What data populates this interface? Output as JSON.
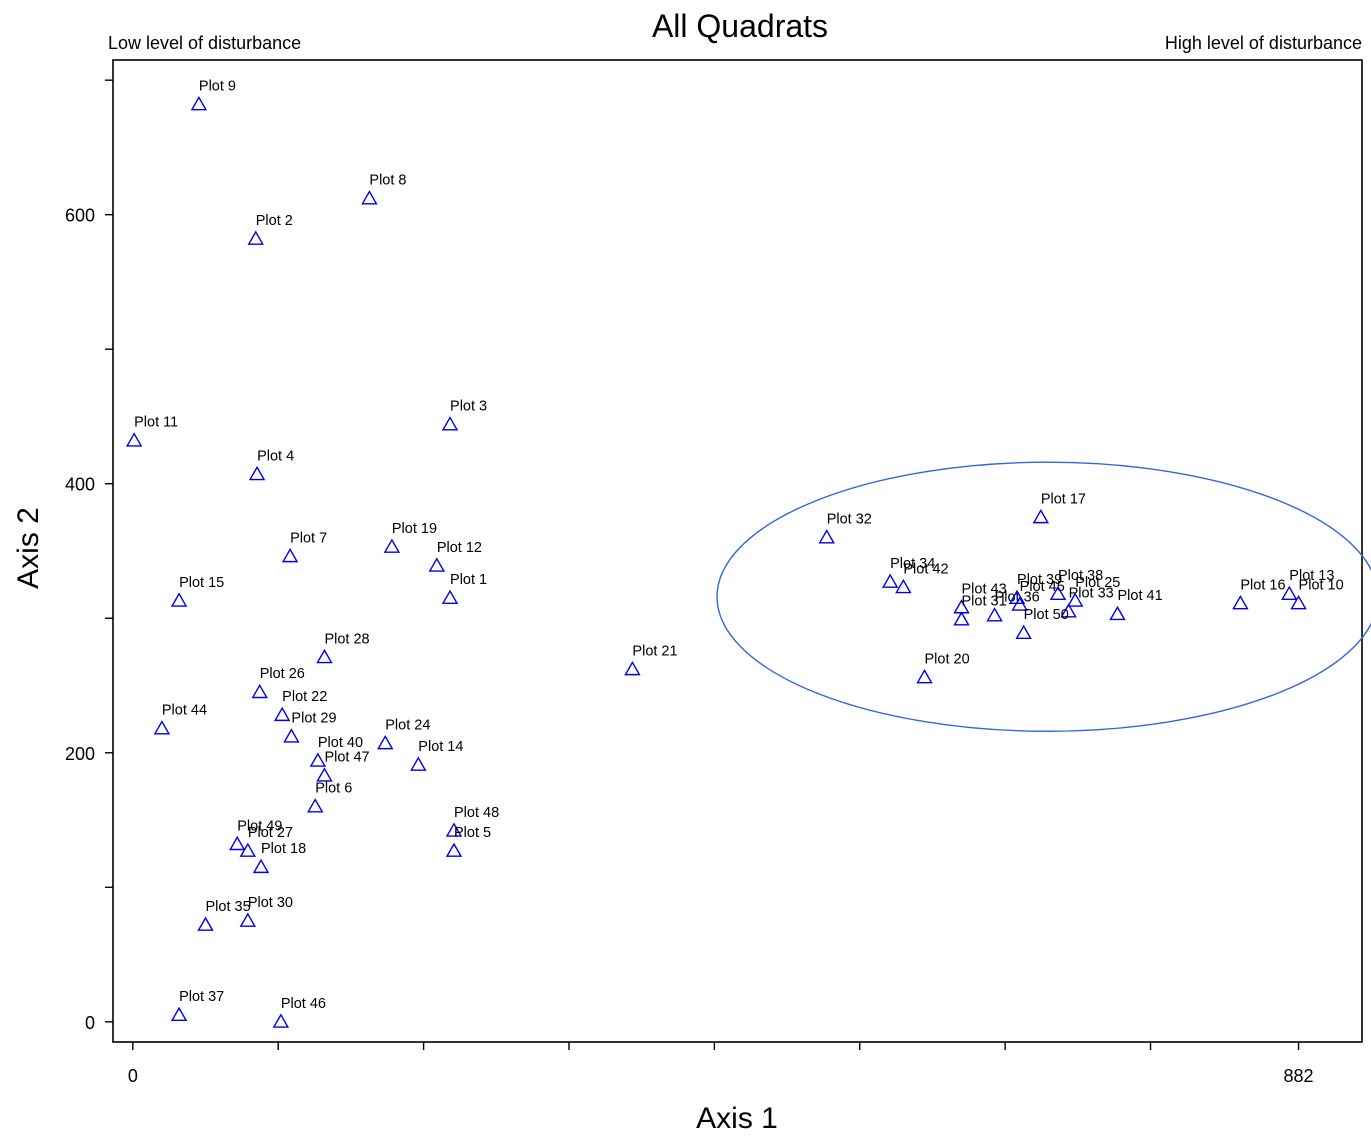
{
  "chart_data": {
    "type": "scatter",
    "title": "All Quadrats",
    "corner_labels": {
      "left": "Low level of disturbance",
      "right": "High level of disturbance"
    },
    "xlabel": "Axis 1",
    "ylabel": "Axis 2",
    "xlim": [
      -15,
      930
    ],
    "ylim": [
      -15,
      715
    ],
    "x_ticks": [
      0,
      110,
      220,
      330,
      440,
      550,
      660,
      770,
      882
    ],
    "x_tick_labels": [
      "0",
      "",
      "",
      "",
      "",
      "",
      "",
      "",
      "882"
    ],
    "y_ticks": [
      0,
      100,
      200,
      300,
      400,
      500,
      600,
      700
    ],
    "y_tick_labels": [
      "0",
      "",
      "200",
      "",
      "400",
      "",
      "600",
      ""
    ],
    "marker": "triangle",
    "marker_color": "#0000ee",
    "highlight": {
      "shape": "ellipse",
      "color": "#3366dd",
      "center": [
        692,
        316
      ],
      "radii": [
        250,
        100
      ]
    },
    "points": [
      {
        "label": "Plot 9",
        "x": 50,
        "y": 682
      },
      {
        "label": "Plot 8",
        "x": 179,
        "y": 612
      },
      {
        "label": "Plot 2",
        "x": 93,
        "y": 582
      },
      {
        "label": "Plot 3",
        "x": 240,
        "y": 444
      },
      {
        "label": "Plot 11",
        "x": 1,
        "y": 432
      },
      {
        "label": "Plot 4",
        "x": 94,
        "y": 407
      },
      {
        "label": "Plot 7",
        "x": 119,
        "y": 346
      },
      {
        "label": "Plot 19",
        "x": 196,
        "y": 353
      },
      {
        "label": "Plot 12",
        "x": 230,
        "y": 339
      },
      {
        "label": "Plot 1",
        "x": 240,
        "y": 315
      },
      {
        "label": "Plot 15",
        "x": 35,
        "y": 313
      },
      {
        "label": "Plot 28",
        "x": 145,
        "y": 271
      },
      {
        "label": "Plot 26",
        "x": 96,
        "y": 245
      },
      {
        "label": "Plot 22",
        "x": 113,
        "y": 228
      },
      {
        "label": "Plot 29",
        "x": 120,
        "y": 212
      },
      {
        "label": "Plot 44",
        "x": 22,
        "y": 218
      },
      {
        "label": "Plot 24",
        "x": 191,
        "y": 207
      },
      {
        "label": "Plot 14",
        "x": 216,
        "y": 191
      },
      {
        "label": "Plot 40",
        "x": 140,
        "y": 194
      },
      {
        "label": "Plot 47",
        "x": 145,
        "y": 183
      },
      {
        "label": "Plot 6",
        "x": 138,
        "y": 160
      },
      {
        "label": "Plot 48",
        "x": 243,
        "y": 142
      },
      {
        "label": "Plot 5",
        "x": 243,
        "y": 127
      },
      {
        "label": "Plot 49",
        "x": 79,
        "y": 132
      },
      {
        "label": "Plot 27",
        "x": 87,
        "y": 127
      },
      {
        "label": "Plot 18",
        "x": 97,
        "y": 115
      },
      {
        "label": "Plot 35",
        "x": 55,
        "y": 72
      },
      {
        "label": "Plot 30",
        "x": 87,
        "y": 75
      },
      {
        "label": "Plot 37",
        "x": 35,
        "y": 5
      },
      {
        "label": "Plot 46",
        "x": 112,
        "y": 0
      },
      {
        "label": "Plot 21",
        "x": 378,
        "y": 262
      },
      {
        "label": "Plot 32",
        "x": 525,
        "y": 360
      },
      {
        "label": "Plot 17",
        "x": 687,
        "y": 375
      },
      {
        "label": "Plot 34",
        "x": 573,
        "y": 327
      },
      {
        "label": "Plot 42",
        "x": 583,
        "y": 323
      },
      {
        "label": "Plot 43",
        "x": 627,
        "y": 308
      },
      {
        "label": "Plot 31",
        "x": 627,
        "y": 299
      },
      {
        "label": "Plot 36",
        "x": 652,
        "y": 302
      },
      {
        "label": "Plot 39",
        "x": 669,
        "y": 315
      },
      {
        "label": "Plot 45",
        "x": 671,
        "y": 310
      },
      {
        "label": "Plot 38",
        "x": 700,
        "y": 318
      },
      {
        "label": "Plot 25",
        "x": 713,
        "y": 313
      },
      {
        "label": "Plot 33",
        "x": 708,
        "y": 305
      },
      {
        "label": "Plot 50",
        "x": 674,
        "y": 289
      },
      {
        "label": "Plot 41",
        "x": 745,
        "y": 303
      },
      {
        "label": "Plot 20",
        "x": 599,
        "y": 256
      },
      {
        "label": "Plot 16",
        "x": 838,
        "y": 311
      },
      {
        "label": "Plot 13",
        "x": 875,
        "y": 318
      },
      {
        "label": "Plot 10",
        "x": 882,
        "y": 311
      }
    ]
  }
}
